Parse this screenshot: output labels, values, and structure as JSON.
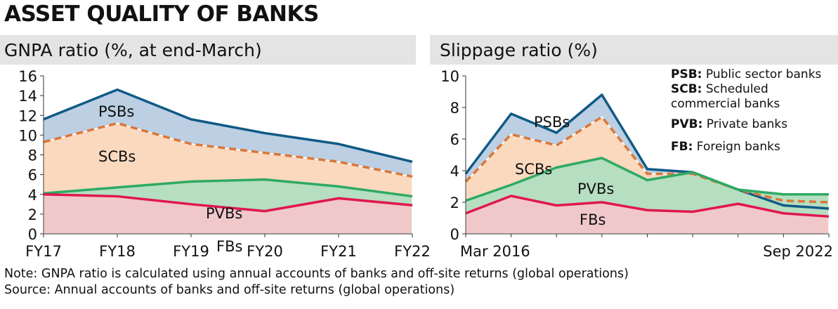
{
  "title": "ASSET QUALITY OF BANKS",
  "legend": [
    {
      "abbr": "PSB:",
      "text": "Public sector banks"
    },
    {
      "abbr": "SCB:",
      "text": "Scheduled commercial banks"
    },
    {
      "abbr": "PVB:",
      "text": "Private banks"
    },
    {
      "abbr": "FB:",
      "text": "Foreign banks"
    }
  ],
  "notes": {
    "note": "Note: GNPA ratio is calculated using annual accounts of banks and off-site returns (global operations)",
    "source": "Source: Annual accounts of banks and off-site returns (global operations)"
  },
  "colors": {
    "PSBs": "#0f5a86",
    "SCBs": "#d9773a",
    "PVBs": "#2eaa63",
    "FBs": "#e0174f",
    "PSBs_fill": "#bccfe3",
    "SCBs_fill": "#fbd9bf",
    "PVBs_fill": "#b6dec0",
    "FBs_fill": "#f1c8ca"
  },
  "chart_data": [
    {
      "type": "area",
      "title": "GNPA ratio (%, at end-March)",
      "categories": [
        "FY17",
        "FY18",
        "FY19",
        "FY20",
        "FY21",
        "FY22"
      ],
      "tick_labels": [
        "FY17",
        "FY18",
        "FY19",
        "FY20",
        "FY21",
        "FY22"
      ],
      "ylim": [
        0,
        16
      ],
      "yticks": [
        "0",
        "2",
        "4",
        "6",
        "8",
        "10",
        "12",
        "14",
        "16"
      ],
      "grid": false,
      "series": [
        {
          "name": "PSBs",
          "values": [
            11.6,
            14.6,
            11.6,
            10.2,
            9.1,
            7.3
          ]
        },
        {
          "name": "SCBs",
          "values": [
            9.3,
            11.2,
            9.1,
            8.2,
            7.3,
            5.8
          ],
          "dashed": true
        },
        {
          "name": "PVBs",
          "values": [
            4.1,
            4.7,
            5.3,
            5.5,
            4.8,
            3.8
          ]
        },
        {
          "name": "FBs",
          "values": [
            4.0,
            3.8,
            3.0,
            2.3,
            3.6,
            2.9
          ]
        }
      ]
    },
    {
      "type": "area",
      "title": "Slippage ratio (%)",
      "categories": [
        "Mar 2016",
        "",
        "",
        "",
        "",
        "",
        "",
        "",
        "Sep 2022"
      ],
      "tick_labels": [
        "Mar 2016",
        "Sep 2022"
      ],
      "ylim": [
        0,
        10
      ],
      "yticks": [
        "0",
        "2",
        "4",
        "6",
        "8",
        "10"
      ],
      "grid": false,
      "series": [
        {
          "name": "PSBs",
          "values": [
            3.8,
            7.6,
            6.4,
            8.8,
            4.1,
            3.9,
            2.8,
            1.8,
            1.6
          ]
        },
        {
          "name": "SCBs",
          "values": [
            3.3,
            6.3,
            5.6,
            7.4,
            3.8,
            3.8,
            2.8,
            2.1,
            2.0
          ],
          "dashed": true
        },
        {
          "name": "PVBs",
          "values": [
            2.1,
            3.1,
            4.2,
            4.8,
            3.4,
            3.9,
            2.8,
            2.5,
            2.5
          ]
        },
        {
          "name": "FBs",
          "values": [
            1.3,
            2.4,
            1.8,
            2.0,
            1.5,
            1.4,
            1.9,
            1.3,
            1.1
          ]
        }
      ]
    }
  ]
}
